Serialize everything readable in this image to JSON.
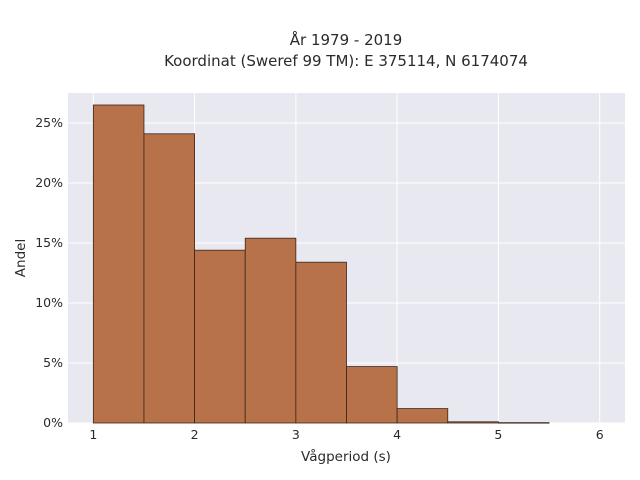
{
  "chart_data": {
    "type": "bar",
    "title_lines": [
      "År 1979 - 2019",
      "Koordinat (Sweref 99 TM): E 375114, N 6174074"
    ],
    "xlabel": "Vågperiod (s)",
    "ylabel": "Andel",
    "x_ticks": [
      "1",
      "2",
      "3",
      "4",
      "5",
      "6"
    ],
    "y_ticks": [
      "0%",
      "5%",
      "10%",
      "15%",
      "20%",
      "25%"
    ],
    "xlim": [
      0.75,
      6.25
    ],
    "ylim": [
      0,
      27.5
    ],
    "grid": true,
    "bins": [
      {
        "x0": 1.0,
        "x1": 1.5,
        "value": 26.5
      },
      {
        "x0": 1.5,
        "x1": 2.0,
        "value": 24.1
      },
      {
        "x0": 2.0,
        "x1": 2.5,
        "value": 14.4
      },
      {
        "x0": 2.5,
        "x1": 3.0,
        "value": 15.4
      },
      {
        "x0": 3.0,
        "x1": 3.5,
        "value": 13.4
      },
      {
        "x0": 3.5,
        "x1": 4.0,
        "value": 4.7
      },
      {
        "x0": 4.0,
        "x1": 4.5,
        "value": 1.2
      },
      {
        "x0": 4.5,
        "x1": 5.0,
        "value": 0.1
      },
      {
        "x0": 5.0,
        "x1": 5.5,
        "value": 0.03
      }
    ],
    "colors": {
      "bar_fill": "#b8724a",
      "bar_edge": "#3b2418",
      "plot_bg": "#e8e8f0",
      "grid": "#ffffff"
    }
  }
}
